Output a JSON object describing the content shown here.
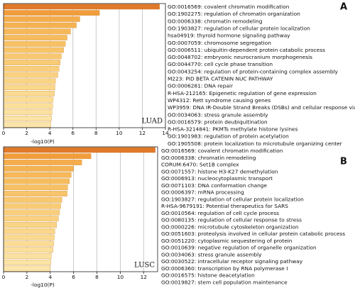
{
  "chart_data": [
    {
      "type": "bar",
      "panel_label": "A",
      "annotation": "LUAD",
      "xlabel": "-log10(P)",
      "categories": [
        "GO:0016569: covalent chromatin modification",
        "GO:1902275: regulation of chromatin organization",
        "GO:0006338: chromatin remodeling",
        "GO:1903827: regulation of cellular protein localization",
        "hsa04919: thyroid hormone signaling pathway",
        "GO:0007059: chromosome segregation",
        "GO:0006511: ubiquitin-dependent protein catabolic process",
        "GO:0048702: embryonic neurocranium morphogenesis",
        "GO:0044770: cell cycle phase transition",
        "GO:0043254: regulation of protein-containing complex assembly",
        "M223: PID BETA CATENIN NUC PATHWAY",
        "GO:0006281: DNA repair",
        "R-HSA-212165: Epigenetic regulation of gene expression",
        "WP4312: Rett syndrome causing genes",
        "WP3959: DNA IR-Double Strand Breaks (DSBs) and cellular response via ATM",
        "GO:0034063: stress granule assembly",
        "GO:0016579: protein deubiquitination",
        "R-HSA-3214841: PKMTs methylate histone lysines",
        "GO:1901983: regulation of protein acetylation",
        "GO:1905508: protein localization to microtubule organizing center"
      ],
      "values": [
        13.5,
        8.3,
        6.6,
        6.3,
        5.8,
        5.5,
        5.35,
        5.2,
        5.0,
        4.9,
        4.8,
        4.7,
        4.5,
        4.45,
        4.4,
        4.3,
        4.25,
        4.2,
        4.15,
        4.1
      ],
      "colors": [
        "#e0792a",
        "#f29d3c",
        "#f5ad4c",
        "#f5b252",
        "#f6b858",
        "#f6bd5e",
        "#f7c164",
        "#f7c46a",
        "#f8c870",
        "#f8cb75",
        "#f9ce7b",
        "#f9d180",
        "#f9d485",
        "#fad78b",
        "#fad990",
        "#fadc95",
        "#fbdf9a",
        "#fbe1a0",
        "#fbe3a5",
        "#fce5aa"
      ],
      "xlim": [
        0,
        14
      ],
      "xticks": [
        0,
        2,
        4,
        6,
        8,
        10,
        12,
        14
      ],
      "grid": true
    },
    {
      "type": "bar",
      "panel_label": "B",
      "annotation": "LUSC",
      "xlabel": "-log10(P)",
      "categories": [
        "GO:0016569: covalent chromatin modification",
        "GO:0006338: chromatin remodeling",
        "CORUM:6470: Set1B complex",
        "GO:0071557: histone H3-K27 demethylation",
        "GO:0006913: nucleocytoplasmic transport",
        "GO:0071103: DNA conformation change",
        "GO:0006397: mRNA processing",
        "GO:1903827: regulation of cellular protein localization",
        "R-HSA-9679191: Potential therapeutics for SARS",
        "GO:0010564: regulation of cell cycle process",
        "GO:0080135: regulation of cellular response to stress",
        "GO:0000226: microtubule cytoskeleton organization",
        "GO:0051603: proteolysis involved in cellular protein catabolic process",
        "GO:0051220: cytoplasmic sequestering of protein",
        "GO:0010639: negative regulation of organelle organization",
        "GO:0034063: stress granule assembly",
        "GO:0030522: intracellular receptor signaling pathway",
        "GO:0006360: transcription by RNA polymerase I",
        "GO:0016575: histone deacetylation",
        "GO:0019827: stem cell population maintenance"
      ],
      "values": [
        13.0,
        7.5,
        6.7,
        6.0,
        5.8,
        5.65,
        5.5,
        5.45,
        5.0,
        4.9,
        4.8,
        4.7,
        4.55,
        4.4,
        4.35,
        4.3,
        4.25,
        4.1,
        4.05,
        4.0
      ],
      "colors": [
        "#e0792a",
        "#f29d3c",
        "#f5ad4c",
        "#f5b252",
        "#f6b858",
        "#f6bd5e",
        "#f7c164",
        "#f7c46a",
        "#f8c870",
        "#f8cb75",
        "#f9ce7b",
        "#f9d180",
        "#f9d485",
        "#fad78b",
        "#fad990",
        "#fadc95",
        "#fbdf9a",
        "#fbe1a0",
        "#fbe3a5",
        "#fce5aa"
      ],
      "xlim": [
        0,
        13.2
      ],
      "xticks": [
        0,
        2,
        4,
        6,
        8,
        10,
        12
      ],
      "grid": true
    }
  ]
}
